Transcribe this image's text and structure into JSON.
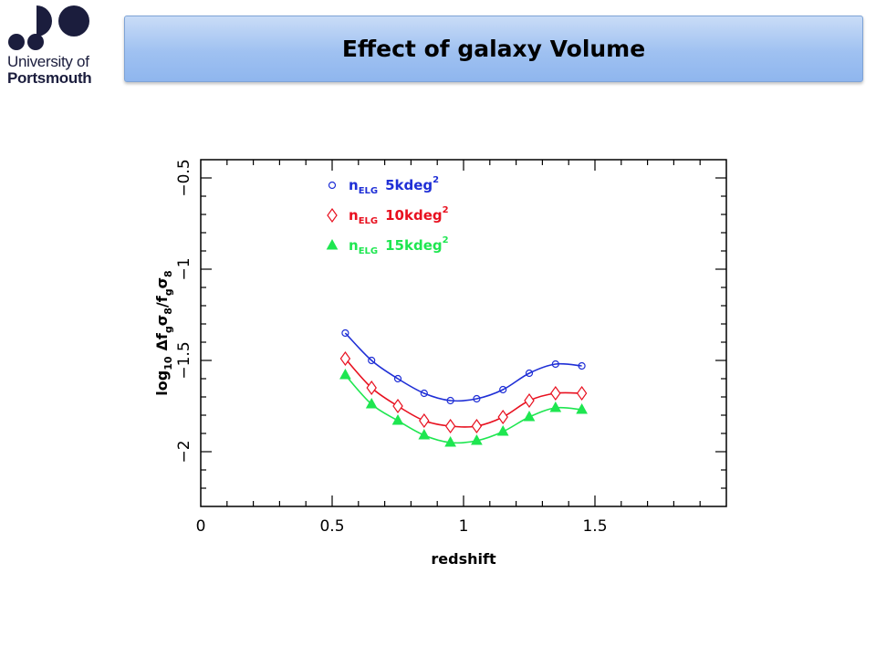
{
  "header": {
    "title": "Effect of galaxy Volume",
    "logo_line1": "University of",
    "logo_line2": "Portsmouth"
  },
  "colors": {
    "series_blue": "#1f2fd6",
    "series_red": "#e8101f",
    "series_green": "#1ee650",
    "title_bar": "#a9c8f4"
  },
  "chart_data": {
    "type": "line",
    "xlabel": "redshift",
    "ylabel_parts": {
      "log": "log",
      "log_sub": "10",
      "delta": "Δf",
      "g1": "g",
      "sigma1": "σ",
      "s8a": "8",
      "slash": "/f",
      "g2": "g",
      "sigma2": "σ",
      "s8b": "8"
    },
    "xlim": [
      0,
      2
    ],
    "ylim": [
      -2.3,
      -0.4
    ],
    "x_ticks": [
      0,
      0.5,
      1,
      1.5
    ],
    "x_tick_labels": [
      "0",
      "0.5",
      "1",
      "1.5"
    ],
    "y_ticks": [
      -0.5,
      -1,
      -1.5,
      -2
    ],
    "y_tick_labels": [
      "−0.5",
      "−1",
      "−1.5",
      "−2"
    ],
    "grid": false,
    "legend_position": "top-left",
    "x": [
      0.55,
      0.65,
      0.75,
      0.85,
      0.95,
      1.05,
      1.15,
      1.25,
      1.35,
      1.45
    ],
    "series": [
      {
        "name": "n",
        "sub": "ELG",
        "label": "5kdeg",
        "sup": "2",
        "marker": "circle",
        "color": "#1f2fd6",
        "values": [
          -1.35,
          -1.5,
          -1.6,
          -1.68,
          -1.72,
          -1.71,
          -1.66,
          -1.57,
          -1.52,
          -1.53
        ]
      },
      {
        "name": "n",
        "sub": "ELG",
        "label": "10kdeg",
        "sup": "2",
        "marker": "diamond",
        "color": "#e8101f",
        "values": [
          -1.49,
          -1.65,
          -1.75,
          -1.83,
          -1.86,
          -1.86,
          -1.81,
          -1.72,
          -1.68,
          -1.68
        ]
      },
      {
        "name": "n",
        "sub": "ELG",
        "label": "15kdeg",
        "sup": "2",
        "marker": "triangle",
        "color": "#1ee650",
        "values": [
          -1.58,
          -1.74,
          -1.83,
          -1.91,
          -1.95,
          -1.94,
          -1.89,
          -1.81,
          -1.76,
          -1.77
        ]
      }
    ]
  }
}
